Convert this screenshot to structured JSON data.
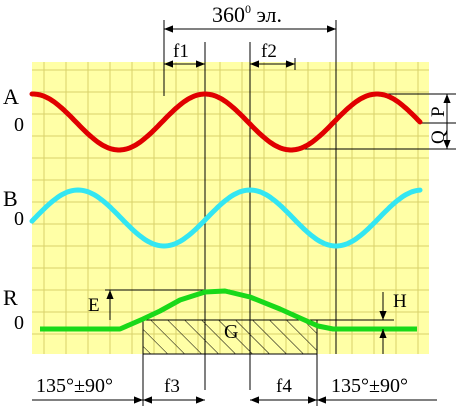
{
  "colors": {
    "background_panel": "#ffffa6",
    "grid": "#d9d26a",
    "wave_A": "#e00000",
    "wave_B": "#33e6f2",
    "wave_R": "#19d919",
    "lines": "#000000"
  },
  "labels": {
    "period": "360",
    "period_degree": "0",
    "period_unit": " эл.",
    "f1": "f1",
    "f2": "f2",
    "f3": "f3",
    "f4": "f4",
    "A": "A",
    "B": "B",
    "R": "R",
    "zero_A": "0",
    "zero_B": "0",
    "zero_R": "0",
    "P": "P",
    "Q": "Q",
    "E": "E",
    "H": "H",
    "G": "G",
    "left_angle": "135°±90°",
    "right_angle": "135°±90°"
  }
}
